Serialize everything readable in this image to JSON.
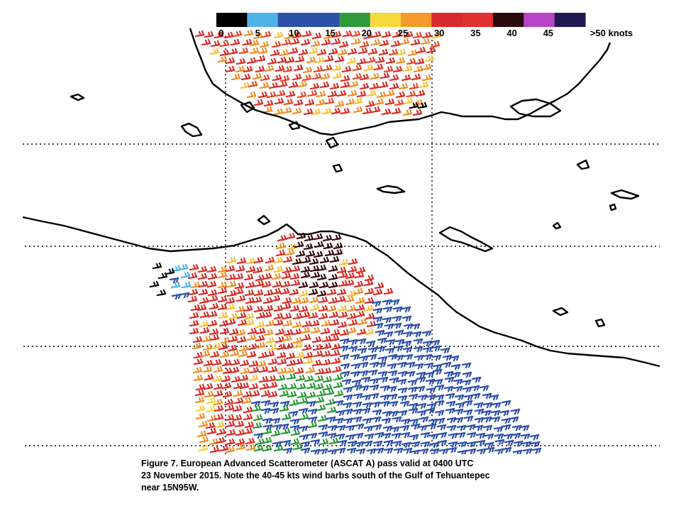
{
  "legend": {
    "ticks": [
      {
        "label": "0",
        "value": 0
      },
      {
        "label": "5",
        "value": 5
      },
      {
        "label": "10",
        "value": 10
      },
      {
        "label": "15",
        "value": 15
      },
      {
        "label": "20",
        "value": 20
      },
      {
        "label": "25",
        "value": 25
      },
      {
        "label": "30",
        "value": 30
      },
      {
        "label": "35",
        "value": 35
      },
      {
        "label": "40",
        "value": 40
      },
      {
        "label": "45",
        "value": 45
      },
      {
        "label": ">50 knots",
        "value": 50
      }
    ],
    "colors": [
      "#000000",
      "#4fb3e8",
      "#2d50a8",
      "#2d50a8",
      "#2e9a3a",
      "#f7d83b",
      "#f39a2a",
      "#d82a2a",
      "#e03030",
      "#2a0a0a",
      "#b844c8",
      "#201a50"
    ]
  },
  "caption": {
    "line1": "Figure 7. European Advanced Scatterometer (ASCAT A) pass valid at 0400 UTC",
    "line2": "23 November 2015. Note the 40-45 kts wind barbs south of the Gulf of Tehuantepec",
    "line3": "near 15N95W."
  }
}
